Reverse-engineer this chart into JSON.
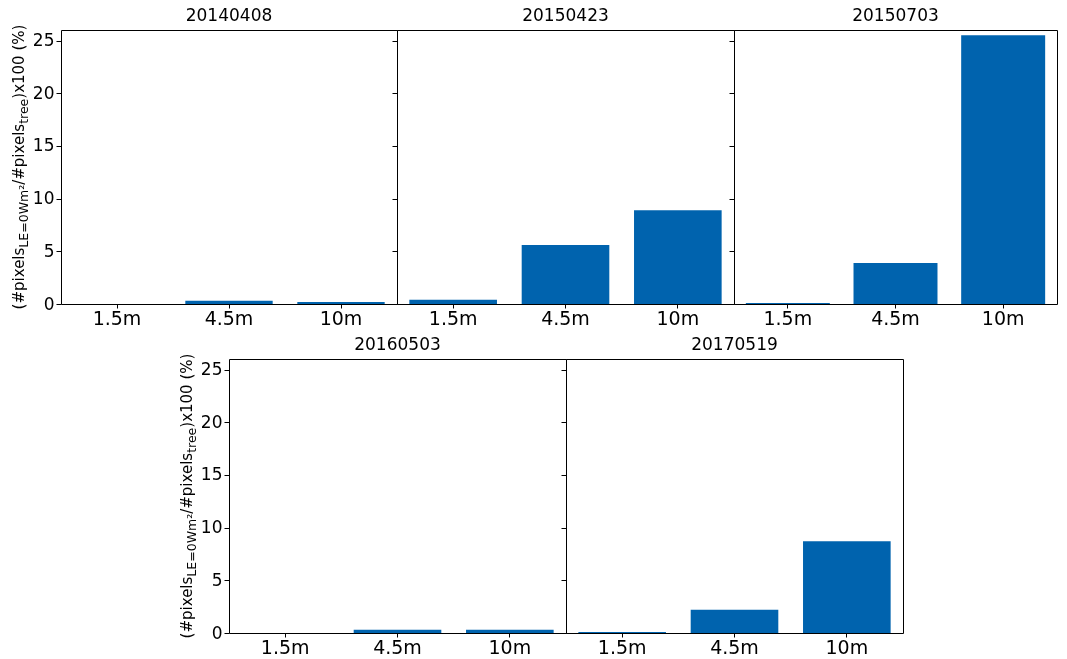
{
  "chart_data": [
    {
      "type": "bar",
      "title": "20140408",
      "ylabel": "(#pixels$_{LE=0Wm²}$/#pixels$_{tree}$)x100 (%)",
      "categories": [
        "1.5m",
        "4.5m",
        "10m"
      ],
      "values": [
        0,
        0.3,
        0.2
      ],
      "color": "#0063ae",
      "ylim": [
        0,
        26
      ],
      "yticks": [
        0,
        5,
        10,
        15,
        20,
        25
      ]
    },
    {
      "type": "bar",
      "title": "20150423",
      "categories": [
        "1.5m",
        "4.5m",
        "10m"
      ],
      "values": [
        0.4,
        5.6,
        8.9
      ],
      "color": "#0063ae",
      "ylim": [
        0,
        26
      ],
      "yticks": [
        0,
        5,
        10,
        15,
        20,
        25
      ],
      "tick_labels": "x"
    },
    {
      "type": "bar",
      "title": "20150703",
      "categories": [
        "1.5m",
        "4.5m",
        "10m"
      ],
      "values": [
        0.1,
        3.9,
        25.5
      ],
      "color": "#0063ae",
      "ylim": [
        0,
        26
      ],
      "yticks": [
        0,
        5,
        10,
        15,
        20,
        25
      ],
      "tick_labels": "x"
    },
    {
      "type": "bar",
      "title": "20160503",
      "ylabel": "(#pixels$_{LE=0Wm²}$/#pixels$_{tree}$)x100 (%)",
      "categories": [
        "1.5m",
        "4.5m",
        "10m"
      ],
      "values": [
        0,
        0.3,
        0.3
      ],
      "color": "#0063ae",
      "ylim": [
        0,
        26
      ],
      "yticks": [
        0,
        5,
        10,
        15,
        20,
        25
      ]
    },
    {
      "type": "bar",
      "title": "20170519",
      "categories": [
        "1.5m",
        "4.5m",
        "10m"
      ],
      "values": [
        0.1,
        2.2,
        8.7
      ],
      "color": "#0063ae",
      "ylim": [
        0,
        26
      ],
      "yticks": [
        0,
        5,
        10,
        15,
        20,
        25
      ],
      "tick_labels": "x"
    }
  ]
}
